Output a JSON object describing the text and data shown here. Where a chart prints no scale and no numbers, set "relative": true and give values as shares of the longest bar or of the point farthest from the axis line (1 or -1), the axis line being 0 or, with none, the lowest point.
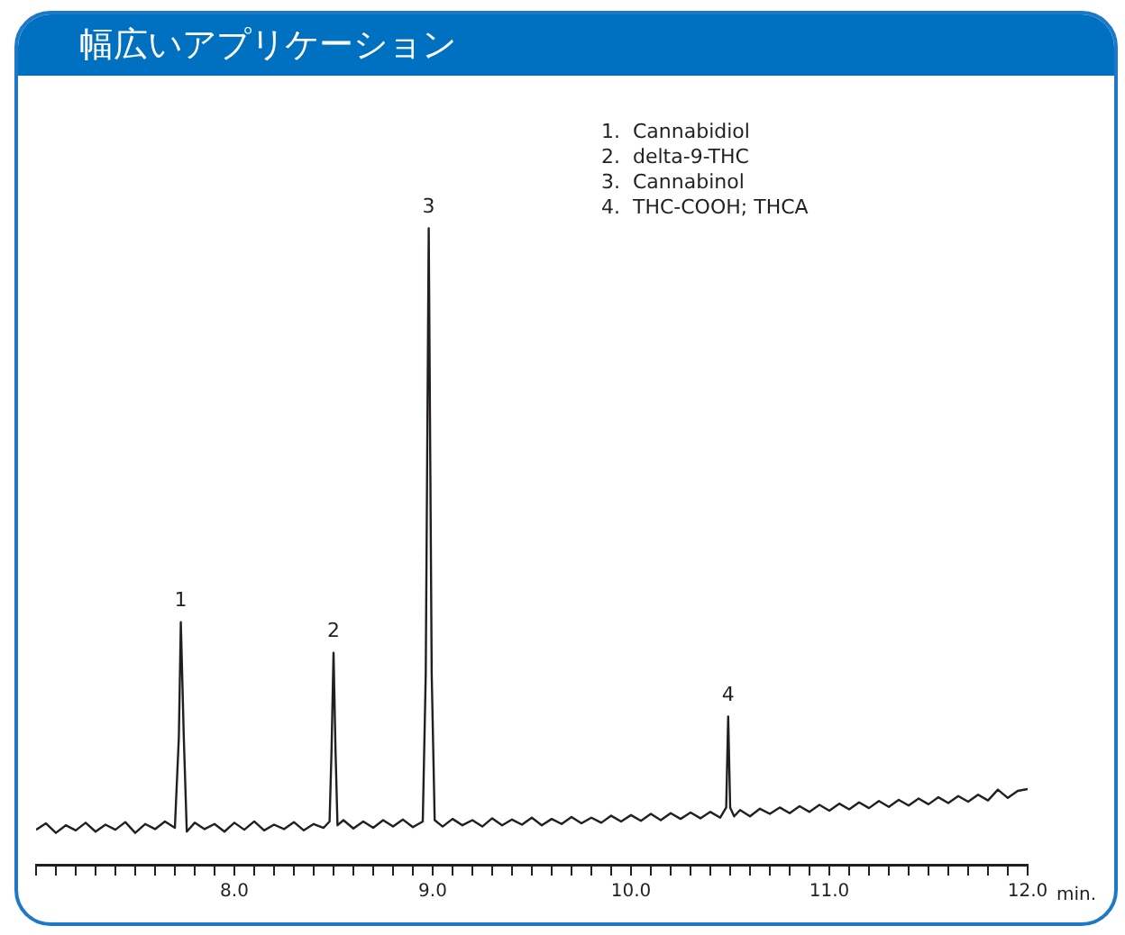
{
  "chart_data": {
    "type": "line",
    "relative": true,
    "title": "幅広いアプリケーション",
    "xlabel": "min.",
    "color": "#231f20",
    "legend": false,
    "grid": false,
    "marker": "none",
    "line_style": "solid",
    "xlim": [
      7,
      12
    ],
    "xticks": [
      {
        "value": 7,
        "label": null
      },
      {
        "value": 7.1,
        "label": null
      },
      {
        "value": 7.2,
        "label": null
      },
      {
        "value": 7.3,
        "label": null
      },
      {
        "value": 7.4,
        "label": null
      },
      {
        "value": 7.5,
        "label": null
      },
      {
        "value": 7.6,
        "label": null
      },
      {
        "value": 7.7,
        "label": null
      },
      {
        "value": 7.8,
        "label": null
      },
      {
        "value": 7.9,
        "label": null
      },
      {
        "value": 8,
        "label": "8.0"
      },
      {
        "value": 8.1,
        "label": null
      },
      {
        "value": 8.2,
        "label": null
      },
      {
        "value": 8.3,
        "label": null
      },
      {
        "value": 8.4,
        "label": null
      },
      {
        "value": 8.5,
        "label": null
      },
      {
        "value": 8.6,
        "label": null
      },
      {
        "value": 8.7,
        "label": null
      },
      {
        "value": 8.8,
        "label": null
      },
      {
        "value": 8.9,
        "label": null
      },
      {
        "value": 9,
        "label": "9.0"
      },
      {
        "value": 9.1,
        "label": null
      },
      {
        "value": 9.2,
        "label": null
      },
      {
        "value": 9.3,
        "label": null
      },
      {
        "value": 9.4,
        "label": null
      },
      {
        "value": 9.5,
        "label": null
      },
      {
        "value": 9.6,
        "label": null
      },
      {
        "value": 9.7,
        "label": null
      },
      {
        "value": 9.8,
        "label": null
      },
      {
        "value": 9.9,
        "label": null
      },
      {
        "value": 10,
        "label": "10.0"
      },
      {
        "value": 10.1,
        "label": null
      },
      {
        "value": 10.2,
        "label": null
      },
      {
        "value": 10.3,
        "label": null
      },
      {
        "value": 10.4,
        "label": null
      },
      {
        "value": 10.5,
        "label": null
      },
      {
        "value": 10.6,
        "label": null
      },
      {
        "value": 10.7,
        "label": null
      },
      {
        "value": 10.8,
        "label": null
      },
      {
        "value": 10.9,
        "label": null
      },
      {
        "value": 11,
        "label": "11.0"
      },
      {
        "value": 11.1,
        "label": null
      },
      {
        "value": 11.2,
        "label": null
      },
      {
        "value": 11.3,
        "label": null
      },
      {
        "value": 11.4,
        "label": null
      },
      {
        "value": 11.5,
        "label": null
      },
      {
        "value": 11.6,
        "label": null
      },
      {
        "value": 11.7,
        "label": null
      },
      {
        "value": 11.8,
        "label": null
      },
      {
        "value": 11.9,
        "label": null
      },
      {
        "value": 12,
        "label": "12.0"
      }
    ],
    "x": [
      7.0,
      7.05,
      7.1,
      7.15,
      7.2,
      7.25,
      7.3,
      7.35,
      7.4,
      7.45,
      7.5,
      7.55,
      7.6,
      7.65,
      7.7,
      7.72,
      7.73,
      7.745,
      7.76,
      7.8,
      7.85,
      7.9,
      7.95,
      8.0,
      8.05,
      8.1,
      8.15,
      8.2,
      8.25,
      8.3,
      8.35,
      8.4,
      8.45,
      8.48,
      8.49,
      8.5,
      8.51,
      8.52,
      8.55,
      8.6,
      8.65,
      8.7,
      8.75,
      8.8,
      8.85,
      8.9,
      8.95,
      8.965,
      8.98,
      8.995,
      9.01,
      9.05,
      9.1,
      9.15,
      9.2,
      9.25,
      9.3,
      9.35,
      9.4,
      9.45,
      9.5,
      9.55,
      9.6,
      9.65,
      9.7,
      9.75,
      9.8,
      9.85,
      9.9,
      9.95,
      10.0,
      10.05,
      10.1,
      10.15,
      10.2,
      10.25,
      10.3,
      10.35,
      10.4,
      10.45,
      10.48,
      10.49,
      10.5,
      10.52,
      10.55,
      10.6,
      10.65,
      10.7,
      10.75,
      10.8,
      10.85,
      10.9,
      10.95,
      11.0,
      11.05,
      11.1,
      11.15,
      11.2,
      11.25,
      11.3,
      11.35,
      11.4,
      11.45,
      11.5,
      11.55,
      11.6,
      11.65,
      11.7,
      11.75,
      11.8,
      11.85,
      11.9,
      11.95,
      12.0
    ],
    "values": [
      0.055,
      0.065,
      0.05,
      0.062,
      0.054,
      0.066,
      0.052,
      0.063,
      0.055,
      0.067,
      0.05,
      0.064,
      0.056,
      0.068,
      0.058,
      0.2,
      0.381,
      0.2,
      0.052,
      0.066,
      0.056,
      0.064,
      0.052,
      0.066,
      0.055,
      0.068,
      0.054,
      0.063,
      0.056,
      0.067,
      0.054,
      0.064,
      0.058,
      0.068,
      0.18,
      0.333,
      0.18,
      0.062,
      0.07,
      0.057,
      0.068,
      0.058,
      0.07,
      0.06,
      0.071,
      0.059,
      0.068,
      0.3,
      1,
      0.3,
      0.07,
      0.06,
      0.072,
      0.062,
      0.07,
      0.06,
      0.073,
      0.062,
      0.071,
      0.063,
      0.074,
      0.062,
      0.072,
      0.064,
      0.075,
      0.065,
      0.074,
      0.066,
      0.077,
      0.068,
      0.078,
      0.069,
      0.08,
      0.07,
      0.081,
      0.072,
      0.082,
      0.073,
      0.083,
      0.074,
      0.09,
      0.233,
      0.09,
      0.076,
      0.086,
      0.076,
      0.088,
      0.08,
      0.09,
      0.081,
      0.092,
      0.083,
      0.094,
      0.085,
      0.096,
      0.087,
      0.098,
      0.089,
      0.1,
      0.091,
      0.102,
      0.093,
      0.104,
      0.095,
      0.106,
      0.097,
      0.108,
      0.099,
      0.11,
      0.101,
      0.118,
      0.105,
      0.116,
      0.119
    ],
    "annotations": [
      {
        "text": "1",
        "x": 7.73,
        "y": 0.381
      },
      {
        "text": "2",
        "x": 8.5,
        "y": 0.333
      },
      {
        "text": "3",
        "x": 8.98,
        "y": 1
      },
      {
        "text": "4",
        "x": 10.49,
        "y": 0.233
      },
      "1.  Cannabidiol",
      "2.  delta-9-THC",
      "3.  Cannabinol",
      "4.  THC-COOH; THCA"
    ]
  }
}
